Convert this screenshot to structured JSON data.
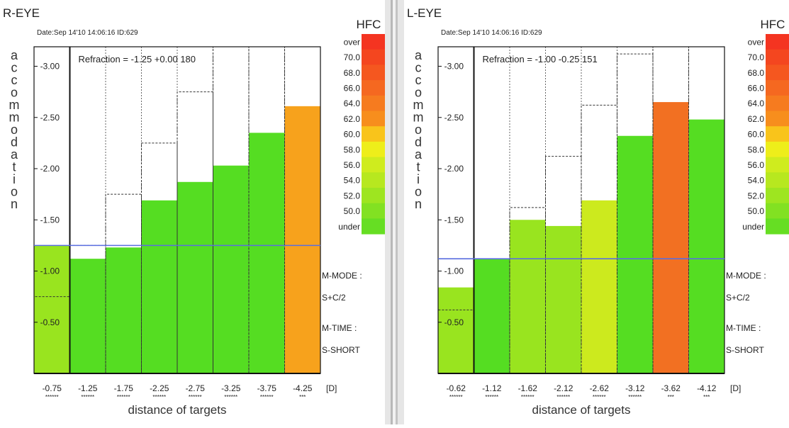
{
  "colors": {
    "green": "#55dd22",
    "lightgreen": "#99e41f",
    "yellowgreen": "#ccea1e",
    "orange": "#f7a21c",
    "darkorange": "#f27022",
    "refline": "#5a6ee0"
  },
  "hfc_scale": {
    "title": "HFC",
    "labels": [
      "over",
      "70.0",
      "68.0",
      "66.0",
      "64.0",
      "62.0",
      "60.0",
      "58.0",
      "56.0",
      "54.0",
      "52.0",
      "50.0",
      "under"
    ],
    "colors": [
      "#f43421",
      "#f4461f",
      "#f5571f",
      "#f56820",
      "#f67b1f",
      "#f78e1d",
      "#f9c41b",
      "#eeee1a",
      "#cfec1e",
      "#b7e81f",
      "#9ee520",
      "#82e122",
      "#66de23"
    ]
  },
  "chart_data": [
    {
      "type": "bar",
      "eye": "R-EYE",
      "header": "Date:Sep 14'10 14:06:16   ID:629",
      "refraction_text": "Refraction = -1.25 +0.00 180",
      "ylabel": "accommodation",
      "yunit": "[D]",
      "xunit": "[D]",
      "xlabel": "distance of targets",
      "ylim": [
        0,
        -3.2
      ],
      "yticks": [
        "-3.00",
        "-2.50",
        "-2.00",
        "-1.50",
        "-1.00",
        "-0.50"
      ],
      "yticks_values": [
        -3.0,
        -2.5,
        -2.0,
        -1.5,
        -1.0,
        -0.5
      ],
      "categories": [
        "-0.75",
        "-1.25",
        "-1.75",
        "-2.25",
        "-2.75",
        "-3.25",
        "-3.75",
        "-4.25"
      ],
      "stars": [
        "******",
        "******",
        "******",
        "******",
        "******",
        "******",
        "******",
        "***"
      ],
      "values": [
        -1.25,
        -1.12,
        -1.23,
        -1.69,
        -1.87,
        -2.03,
        -2.35,
        -2.61
      ],
      "targets": [
        -0.75,
        -1.25,
        -1.75,
        -2.25,
        -2.75,
        -3.25,
        -3.75,
        -4.25
      ],
      "bar_colors": [
        "lightgreen",
        "green",
        "green",
        "green",
        "green",
        "green",
        "green",
        "orange"
      ],
      "refraction_line": -1.25,
      "m_mode_label": "M-MODE :",
      "m_mode_value": "S+C/2",
      "m_time_label": "M-TIME :",
      "m_time_value": "S-SHORT"
    },
    {
      "type": "bar",
      "eye": "L-EYE",
      "header": "Date:Sep 14'10 14:06:16   ID:629",
      "refraction_text": "Refraction = -1.00 -0.25 151",
      "ylabel": "accommodation",
      "yunit": "[D]",
      "xunit": "[D]",
      "xlabel": "distance of targets",
      "ylim": [
        0,
        -3.2
      ],
      "yticks": [
        "-3.00",
        "-2.50",
        "-2.00",
        "-1.50",
        "-1.00",
        "-0.50"
      ],
      "yticks_values": [
        -3.0,
        -2.5,
        -2.0,
        -1.5,
        -1.0,
        -0.5
      ],
      "categories": [
        "-0.62",
        "-1.12",
        "-1.62",
        "-2.12",
        "-2.62",
        "-3.12",
        "-3.62",
        "-4.12"
      ],
      "stars": [
        "******",
        "******",
        "******",
        "******",
        "******",
        "******",
        "***",
        "***"
      ],
      "values": [
        -0.84,
        -1.12,
        -1.5,
        -1.44,
        -1.69,
        -2.32,
        -2.65,
        -2.48
      ],
      "targets": [
        -0.62,
        -1.12,
        -1.62,
        -2.12,
        -2.62,
        -3.12,
        -3.62,
        -4.12
      ],
      "bar_colors": [
        "lightgreen",
        "green",
        "lightgreen",
        "lightgreen",
        "yellowgreen",
        "green",
        "darkorange",
        "green"
      ],
      "refraction_line": -1.12,
      "m_mode_label": "M-MODE :",
      "m_mode_value": "S+C/2",
      "m_time_label": "M-TIME :",
      "m_time_value": "S-SHORT"
    }
  ]
}
